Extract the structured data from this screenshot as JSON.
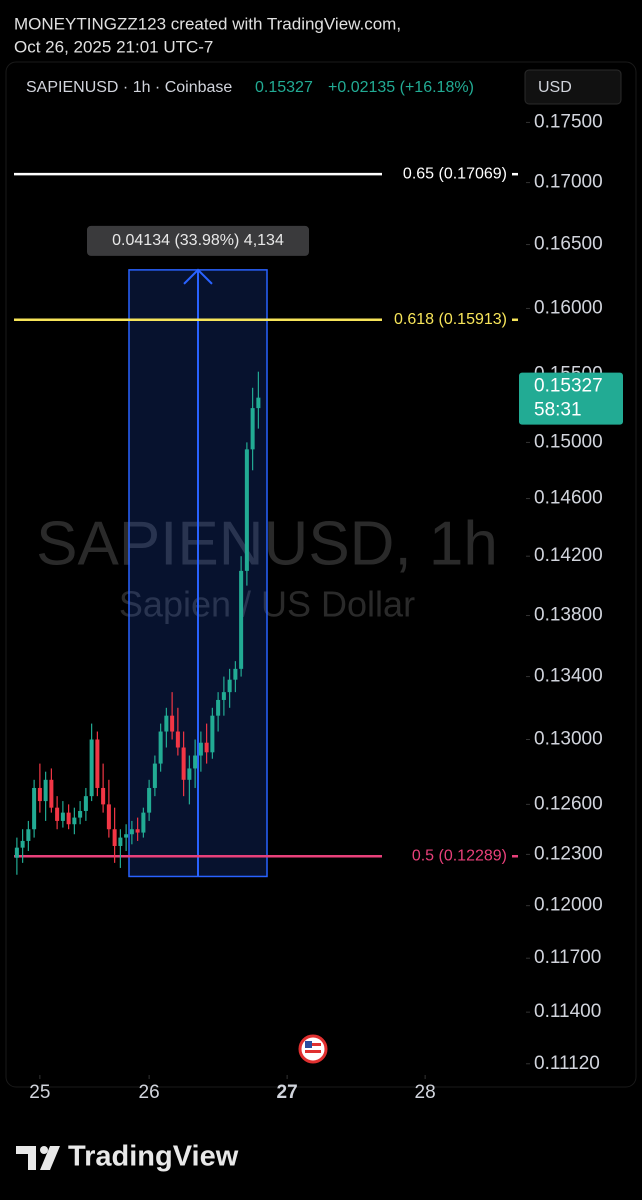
{
  "header": {
    "line1": "MONEYTINGZZ123 created with TradingView.com,",
    "line2": "Oct 26, 2025 21:01 UTC-7"
  },
  "chart_data": {
    "type": "candlestick",
    "symbol": "SAPIENUSD · 1h · Coinbase",
    "last_price": 0.15327,
    "change": "+0.02135 (+16.18%)",
    "currency": "USD",
    "countdown": "58:31",
    "watermark": "SAPIENUSD, 1h",
    "watermark_sub": "Sapien / US Dollar",
    "up_color": "#22ab94",
    "down_color": "#f23645",
    "open": [
      0.1228,
      0.1234,
      0.1238,
      0.1245,
      0.127,
      0.1262,
      0.1275,
      0.1258,
      0.125,
      0.1255,
      0.1248,
      0.1252,
      0.1256,
      0.1265,
      0.13,
      0.127,
      0.126,
      0.1245,
      0.1235,
      0.124,
      0.1242,
      0.1245,
      0.1243,
      0.1255,
      0.127,
      0.1285,
      0.1305,
      0.1315,
      0.1305,
      0.1295,
      0.1275,
      0.1282,
      0.129,
      0.1298,
      0.1292,
      0.1315,
      0.1325,
      0.133,
      0.1338,
      0.1345,
      0.141,
      0.1495,
      0.1525
    ],
    "high": [
      0.124,
      0.1245,
      0.125,
      0.1275,
      0.1285,
      0.128,
      0.1282,
      0.1265,
      0.1262,
      0.126,
      0.1258,
      0.1262,
      0.127,
      0.131,
      0.1305,
      0.1285,
      0.1275,
      0.1258,
      0.1245,
      0.1248,
      0.125,
      0.1252,
      0.1258,
      0.1275,
      0.129,
      0.131,
      0.132,
      0.133,
      0.132,
      0.1305,
      0.129,
      0.13,
      0.1305,
      0.131,
      0.132,
      0.133,
      0.134,
      0.1345,
      0.135,
      0.142,
      0.15,
      0.154,
      0.1552
    ],
    "low": [
      0.1218,
      0.1225,
      0.1232,
      0.124,
      0.1255,
      0.125,
      0.1255,
      0.1245,
      0.1246,
      0.1245,
      0.1242,
      0.1248,
      0.125,
      0.1262,
      0.1265,
      0.1255,
      0.124,
      0.1225,
      0.1222,
      0.1232,
      0.1236,
      0.1238,
      0.124,
      0.125,
      0.1265,
      0.128,
      0.1295,
      0.13,
      0.129,
      0.1265,
      0.126,
      0.127,
      0.128,
      0.1285,
      0.1288,
      0.1305,
      0.1315,
      0.132,
      0.133,
      0.134,
      0.14,
      0.148,
      0.151
    ],
    "close": [
      0.1234,
      0.1238,
      0.1245,
      0.127,
      0.1262,
      0.1275,
      0.1258,
      0.125,
      0.1255,
      0.1248,
      0.1252,
      0.1256,
      0.1265,
      0.13,
      0.127,
      0.126,
      0.1245,
      0.1235,
      0.124,
      0.1242,
      0.1245,
      0.1243,
      0.1255,
      0.127,
      0.1285,
      0.1305,
      0.1315,
      0.1305,
      0.1295,
      0.1275,
      0.1282,
      0.129,
      0.1298,
      0.1292,
      0.1315,
      0.1325,
      0.133,
      0.1338,
      0.1345,
      0.141,
      0.1495,
      0.1525,
      0.15327
    ],
    "log_scale": true,
    "ylim": [
      0.1106,
      0.1769
    ],
    "yticks": [
      {
        "value": 0.175,
        "label": "0.17500"
      },
      {
        "value": 0.17,
        "label": "0.17000"
      },
      {
        "value": 0.165,
        "label": "0.16500"
      },
      {
        "value": 0.16,
        "label": "0.16000"
      },
      {
        "value": 0.155,
        "label": "0.15500"
      },
      {
        "value": 0.15,
        "label": "0.15000"
      },
      {
        "value": 0.146,
        "label": "0.14600"
      },
      {
        "value": 0.142,
        "label": "0.14200"
      },
      {
        "value": 0.138,
        "label": "0.13800"
      },
      {
        "value": 0.134,
        "label": "0.13400"
      },
      {
        "value": 0.13,
        "label": "0.13000"
      },
      {
        "value": 0.126,
        "label": "0.12600"
      },
      {
        "value": 0.123,
        "label": "0.12300"
      },
      {
        "value": 0.12,
        "label": "0.12000"
      },
      {
        "value": 0.117,
        "label": "0.11700"
      },
      {
        "value": 0.114,
        "label": "0.11400"
      },
      {
        "value": 0.1112,
        "label": "0.11120"
      }
    ],
    "xlim": [
      0,
      88
    ],
    "xticks": [
      {
        "value": 4,
        "label": "25"
      },
      {
        "value": 23,
        "label": "26"
      },
      {
        "value": 47,
        "label": "27"
      },
      {
        "value": 71,
        "label": "28"
      }
    ],
    "levels": [
      {
        "label": "0.65 (0.17069)",
        "value": 0.17069,
        "color": "#ffffff"
      },
      {
        "label": "0.618 (0.15913)",
        "value": 0.15913,
        "color": "#f7e55a"
      },
      {
        "label": "0.5 (0.12289)",
        "value": 0.12289,
        "color": "#e8407a"
      }
    ],
    "measure": {
      "label": "0.04134 (33.98%) 4,134",
      "range": [
        0.1217,
        0.163
      ],
      "span": [
        20,
        43
      ]
    }
  },
  "footer": {
    "brand": "TradingView"
  }
}
